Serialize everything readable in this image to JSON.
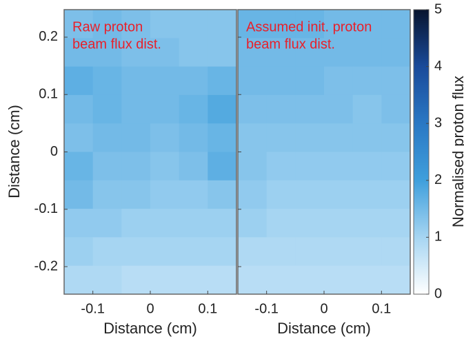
{
  "chart_data": {
    "type": "heatmap",
    "ylabel": "Distance (cm)",
    "xlim": [
      -0.15,
      0.15
    ],
    "ylim": [
      -0.248,
      0.248
    ],
    "xticks": [
      -0.1,
      0,
      0.1
    ],
    "yticks": [
      -0.2,
      -0.1,
      0,
      0.1,
      0.2
    ],
    "clim": [
      0,
      5
    ],
    "cticks": [
      0,
      1,
      2,
      3,
      4,
      5
    ],
    "colorbar_label": "Normalised proton flux",
    "colormap": [
      "#ffffff",
      "#a6d5f2",
      "#3f9fdc",
      "#2a78c4",
      "#1a4a9a",
      "#08142e"
    ],
    "panels": [
      {
        "annotation": [
          "Raw proton",
          "beam flux dist."
        ],
        "xlabel": "Distance (cm)",
        "z": [
          [
            1.4,
            1.5,
            1.4,
            1.3,
            1.3,
            1.3
          ],
          [
            1.5,
            1.5,
            1.4,
            1.4,
            1.3,
            1.3
          ],
          [
            1.7,
            1.6,
            1.5,
            1.5,
            1.5,
            1.6
          ],
          [
            1.5,
            1.6,
            1.5,
            1.5,
            1.6,
            1.8
          ],
          [
            1.4,
            1.5,
            1.5,
            1.4,
            1.5,
            1.6
          ],
          [
            1.6,
            1.4,
            1.4,
            1.3,
            1.4,
            1.7
          ],
          [
            1.5,
            1.3,
            1.3,
            1.2,
            1.2,
            1.3
          ],
          [
            1.2,
            1.2,
            1.1,
            1.1,
            1.1,
            1.1
          ],
          [
            1.1,
            1.0,
            1.0,
            1.0,
            1.0,
            1.0
          ],
          [
            0.9,
            0.9,
            0.8,
            0.8,
            0.8,
            0.8
          ]
        ]
      },
      {
        "annotation": [
          "Assumed init. proton",
          "beam flux dist."
        ],
        "xlabel": "Distance (cm)",
        "z": [
          [
            1.6,
            1.6,
            1.6,
            1.5,
            1.5,
            1.5
          ],
          [
            1.5,
            1.5,
            1.5,
            1.5,
            1.5,
            1.5
          ],
          [
            1.5,
            1.5,
            1.5,
            1.4,
            1.4,
            1.4
          ],
          [
            1.4,
            1.4,
            1.4,
            1.4,
            1.3,
            1.4
          ],
          [
            1.3,
            1.3,
            1.3,
            1.3,
            1.3,
            1.3
          ],
          [
            1.3,
            1.2,
            1.2,
            1.2,
            1.2,
            1.2
          ],
          [
            1.2,
            1.1,
            1.1,
            1.1,
            1.1,
            1.1
          ],
          [
            1.1,
            1.0,
            1.0,
            1.0,
            1.0,
            1.0
          ],
          [
            0.9,
            0.9,
            0.9,
            0.9,
            0.9,
            0.9
          ],
          [
            0.8,
            0.8,
            0.8,
            0.8,
            0.8,
            0.8
          ]
        ]
      }
    ]
  }
}
